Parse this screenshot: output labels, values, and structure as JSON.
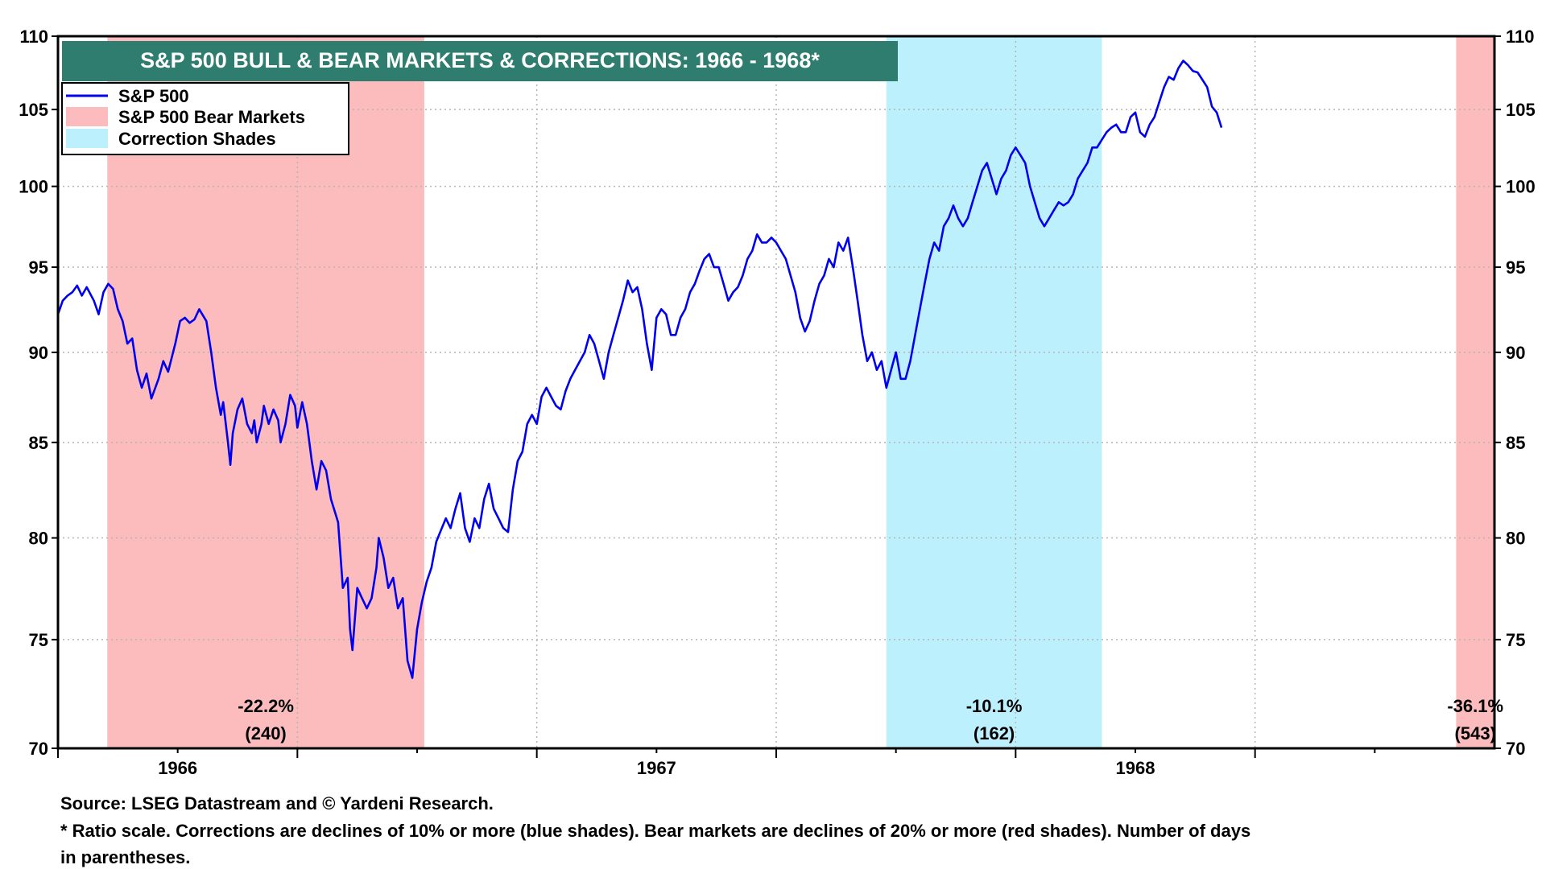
{
  "chart_data": {
    "type": "line",
    "title": "S&P 500 BULL & BEAR MARKETS & CORRECTIONS: 1966 - 1968*",
    "scale": "log",
    "ylim": [
      70,
      110
    ],
    "y_ticks": [
      70,
      75,
      80,
      85,
      90,
      95,
      100,
      105,
      110
    ],
    "x_range": [
      1965.5,
      1968.5
    ],
    "x_major_ticks": [
      1965.5,
      1966.0,
      1966.5,
      1967.0,
      1967.5,
      1968.0
    ],
    "x_minor_ticks": [
      1965.75,
      1966.25,
      1966.75,
      1967.25,
      1967.75,
      1968.25
    ],
    "x_labels": [
      {
        "text": "1966",
        "x": 1965.75
      },
      {
        "text": "1967",
        "x": 1966.75
      },
      {
        "text": "1968",
        "x": 1967.75
      }
    ],
    "grid": true,
    "legend_position": "top-left",
    "legend": [
      {
        "label": "S&P 500",
        "kind": "line",
        "color": "#0000ee"
      },
      {
        "label": "S&P 500 Bear Markets",
        "kind": "box",
        "color": "#fcbcbd"
      },
      {
        "label": "Correction Shades",
        "kind": "box",
        "color": "#bdf0fd"
      }
    ],
    "shades": [
      {
        "kind": "bear",
        "start": 1965.603,
        "end": 1966.265,
        "color": "#fcbcbd",
        "pct_label": "-22.2%",
        "days_label": "(240)"
      },
      {
        "kind": "correction",
        "start": 1967.23,
        "end": 1967.68,
        "color": "#bdf0fd",
        "pct_label": "-10.1%",
        "days_label": "(162)"
      },
      {
        "kind": "bear",
        "start": 1968.42,
        "end": 1968.5,
        "color": "#fcbcbd",
        "pct_label": "-36.1%",
        "days_label": "(543)"
      }
    ],
    "series": [
      {
        "name": "S&P 500",
        "color": "#0000ee",
        "points": [
          [
            1965.5,
            92.2
          ],
          [
            1965.51,
            93.0
          ],
          [
            1965.52,
            93.3
          ],
          [
            1965.53,
            93.5
          ],
          [
            1965.54,
            93.9
          ],
          [
            1965.55,
            93.3
          ],
          [
            1965.56,
            93.8
          ],
          [
            1965.575,
            93.0
          ],
          [
            1965.585,
            92.2
          ],
          [
            1965.595,
            93.5
          ],
          [
            1965.605,
            94.0
          ],
          [
            1965.615,
            93.7
          ],
          [
            1965.625,
            92.5
          ],
          [
            1965.635,
            91.8
          ],
          [
            1965.645,
            90.5
          ],
          [
            1965.655,
            90.8
          ],
          [
            1965.665,
            89.0
          ],
          [
            1965.675,
            88.0
          ],
          [
            1965.685,
            88.8
          ],
          [
            1965.695,
            87.4
          ],
          [
            1965.71,
            88.5
          ],
          [
            1965.72,
            89.5
          ],
          [
            1965.73,
            88.9
          ],
          [
            1965.745,
            90.5
          ],
          [
            1965.755,
            91.8
          ],
          [
            1965.765,
            92.0
          ],
          [
            1965.775,
            91.7
          ],
          [
            1965.785,
            91.9
          ],
          [
            1965.795,
            92.5
          ],
          [
            1965.81,
            91.8
          ],
          [
            1965.82,
            90.0
          ],
          [
            1965.83,
            88.0
          ],
          [
            1965.84,
            86.5
          ],
          [
            1965.845,
            87.2
          ],
          [
            1965.855,
            85.0
          ],
          [
            1965.86,
            83.8
          ],
          [
            1965.865,
            85.5
          ],
          [
            1965.875,
            86.8
          ],
          [
            1965.885,
            87.4
          ],
          [
            1965.895,
            86.0
          ],
          [
            1965.905,
            85.5
          ],
          [
            1965.91,
            86.2
          ],
          [
            1965.915,
            85.0
          ],
          [
            1965.925,
            86.0
          ],
          [
            1965.93,
            87.0
          ],
          [
            1965.94,
            86.0
          ],
          [
            1965.95,
            86.8
          ],
          [
            1965.96,
            86.2
          ],
          [
            1965.965,
            85.0
          ],
          [
            1965.975,
            86.0
          ],
          [
            1965.985,
            87.6
          ],
          [
            1965.995,
            87.0
          ],
          [
            1966.0,
            85.8
          ],
          [
            1966.01,
            87.2
          ],
          [
            1966.02,
            86.0
          ],
          [
            1966.03,
            84.0
          ],
          [
            1966.04,
            82.5
          ],
          [
            1966.05,
            84.0
          ],
          [
            1966.06,
            83.5
          ],
          [
            1966.07,
            82.0
          ],
          [
            1966.085,
            80.8
          ],
          [
            1966.095,
            77.5
          ],
          [
            1966.105,
            78.0
          ],
          [
            1966.11,
            75.5
          ],
          [
            1966.115,
            74.5
          ],
          [
            1966.125,
            77.5
          ],
          [
            1966.135,
            77.0
          ],
          [
            1966.145,
            76.5
          ],
          [
            1966.155,
            77.0
          ],
          [
            1966.165,
            78.5
          ],
          [
            1966.17,
            80.0
          ],
          [
            1966.18,
            79.0
          ],
          [
            1966.19,
            77.5
          ],
          [
            1966.2,
            78.0
          ],
          [
            1966.21,
            76.5
          ],
          [
            1966.22,
            77.0
          ],
          [
            1966.23,
            74.0
          ],
          [
            1966.24,
            73.2
          ],
          [
            1966.25,
            75.5
          ],
          [
            1966.26,
            76.8
          ],
          [
            1966.27,
            77.8
          ],
          [
            1966.28,
            78.5
          ],
          [
            1966.29,
            79.8
          ],
          [
            1966.3,
            80.4
          ],
          [
            1966.31,
            81.0
          ],
          [
            1966.32,
            80.5
          ],
          [
            1966.33,
            81.5
          ],
          [
            1966.34,
            82.3
          ],
          [
            1966.35,
            80.5
          ],
          [
            1966.36,
            79.8
          ],
          [
            1966.37,
            81.0
          ],
          [
            1966.38,
            80.5
          ],
          [
            1966.39,
            82.0
          ],
          [
            1966.4,
            82.8
          ],
          [
            1966.41,
            81.5
          ],
          [
            1966.42,
            81.0
          ],
          [
            1966.43,
            80.5
          ],
          [
            1966.44,
            80.3
          ],
          [
            1966.45,
            82.5
          ],
          [
            1966.46,
            84.0
          ],
          [
            1966.47,
            84.5
          ],
          [
            1966.48,
            86.0
          ],
          [
            1966.49,
            86.5
          ],
          [
            1966.5,
            86.0
          ],
          [
            1966.51,
            87.5
          ],
          [
            1966.52,
            88.0
          ],
          [
            1966.53,
            87.5
          ],
          [
            1966.54,
            87.0
          ],
          [
            1966.55,
            86.8
          ],
          [
            1966.56,
            87.8
          ],
          [
            1966.57,
            88.5
          ],
          [
            1966.58,
            89.0
          ],
          [
            1966.59,
            89.5
          ],
          [
            1966.6,
            90.0
          ],
          [
            1966.61,
            91.0
          ],
          [
            1966.62,
            90.5
          ],
          [
            1966.63,
            89.5
          ],
          [
            1966.64,
            88.5
          ],
          [
            1966.65,
            90.0
          ],
          [
            1966.66,
            91.0
          ],
          [
            1966.67,
            92.0
          ],
          [
            1966.68,
            93.0
          ],
          [
            1966.69,
            94.2
          ],
          [
            1966.7,
            93.5
          ],
          [
            1966.71,
            93.8
          ],
          [
            1966.72,
            92.5
          ],
          [
            1966.73,
            90.5
          ],
          [
            1966.74,
            89.0
          ],
          [
            1966.75,
            92.0
          ],
          [
            1966.76,
            92.5
          ],
          [
            1966.77,
            92.2
          ],
          [
            1966.78,
            91.0
          ],
          [
            1966.79,
            91.0
          ],
          [
            1966.8,
            92.0
          ],
          [
            1966.81,
            92.5
          ],
          [
            1966.82,
            93.5
          ],
          [
            1966.83,
            94.0
          ],
          [
            1966.84,
            94.8
          ],
          [
            1966.85,
            95.5
          ],
          [
            1966.86,
            95.8
          ],
          [
            1966.87,
            95.0
          ],
          [
            1966.88,
            95.0
          ],
          [
            1966.89,
            94.0
          ],
          [
            1966.9,
            93.0
          ],
          [
            1966.91,
            93.5
          ],
          [
            1966.92,
            93.8
          ],
          [
            1966.93,
            94.5
          ],
          [
            1966.94,
            95.5
          ],
          [
            1966.95,
            96.0
          ],
          [
            1966.96,
            97.0
          ],
          [
            1966.97,
            96.5
          ],
          [
            1966.98,
            96.5
          ],
          [
            1966.99,
            96.8
          ],
          [
            1967.0,
            96.5
          ],
          [
            1967.01,
            96.0
          ],
          [
            1967.02,
            95.5
          ],
          [
            1967.03,
            94.5
          ],
          [
            1967.04,
            93.5
          ],
          [
            1967.05,
            92.0
          ],
          [
            1967.06,
            91.2
          ],
          [
            1967.07,
            91.8
          ],
          [
            1967.08,
            93.0
          ],
          [
            1967.09,
            94.0
          ],
          [
            1967.1,
            94.5
          ],
          [
            1967.11,
            95.5
          ],
          [
            1967.12,
            95.0
          ],
          [
            1967.13,
            96.5
          ],
          [
            1967.14,
            96.0
          ],
          [
            1967.15,
            96.8
          ],
          [
            1967.16,
            95.0
          ],
          [
            1967.17,
            93.0
          ],
          [
            1967.18,
            91.0
          ],
          [
            1967.19,
            89.5
          ],
          [
            1967.2,
            90.0
          ],
          [
            1967.21,
            89.0
          ],
          [
            1967.22,
            89.5
          ],
          [
            1967.23,
            88.0
          ],
          [
            1967.24,
            89.0
          ],
          [
            1967.25,
            90.0
          ],
          [
            1967.26,
            88.5
          ],
          [
            1967.27,
            88.5
          ],
          [
            1967.28,
            89.5
          ],
          [
            1967.29,
            91.0
          ],
          [
            1967.3,
            92.5
          ],
          [
            1967.31,
            94.0
          ],
          [
            1967.32,
            95.5
          ],
          [
            1967.33,
            96.5
          ],
          [
            1967.34,
            96.0
          ],
          [
            1967.35,
            97.5
          ],
          [
            1967.36,
            98.0
          ],
          [
            1967.37,
            98.8
          ],
          [
            1967.38,
            98.0
          ],
          [
            1967.39,
            97.5
          ],
          [
            1967.4,
            98.0
          ],
          [
            1967.41,
            99.0
          ],
          [
            1967.42,
            100.0
          ],
          [
            1967.43,
            101.0
          ],
          [
            1967.44,
            101.5
          ],
          [
            1967.45,
            100.5
          ],
          [
            1967.46,
            99.5
          ],
          [
            1967.47,
            100.5
          ],
          [
            1967.48,
            101.0
          ],
          [
            1967.49,
            102.0
          ],
          [
            1967.5,
            102.5
          ],
          [
            1967.51,
            102.0
          ],
          [
            1967.52,
            101.5
          ],
          [
            1967.53,
            100.0
          ],
          [
            1967.54,
            99.0
          ],
          [
            1967.55,
            98.0
          ],
          [
            1967.56,
            97.5
          ],
          [
            1967.57,
            98.0
          ],
          [
            1967.58,
            98.5
          ],
          [
            1967.59,
            99.0
          ],
          [
            1967.6,
            98.8
          ],
          [
            1967.61,
            99.0
          ],
          [
            1967.62,
            99.5
          ],
          [
            1967.63,
            100.5
          ],
          [
            1967.64,
            101.0
          ],
          [
            1967.65,
            101.5
          ],
          [
            1967.66,
            102.5
          ],
          [
            1967.67,
            102.5
          ],
          [
            1967.68,
            103.0
          ],
          [
            1967.69,
            103.5
          ],
          [
            1967.7,
            103.8
          ],
          [
            1967.71,
            104.0
          ],
          [
            1967.72,
            103.5
          ],
          [
            1967.73,
            103.5
          ],
          [
            1967.74,
            104.5
          ],
          [
            1967.75,
            104.8
          ],
          [
            1967.76,
            103.5
          ],
          [
            1967.77,
            103.2
          ],
          [
            1967.78,
            104.0
          ],
          [
            1967.79,
            104.5
          ],
          [
            1967.8,
            105.5
          ],
          [
            1967.81,
            106.5
          ],
          [
            1967.82,
            107.2
          ],
          [
            1967.83,
            107.0
          ],
          [
            1967.84,
            107.8
          ],
          [
            1967.85,
            108.3
          ],
          [
            1967.86,
            108.0
          ],
          [
            1967.87,
            107.6
          ],
          [
            1967.88,
            107.5
          ],
          [
            1967.89,
            107.0
          ],
          [
            1967.9,
            106.5
          ],
          [
            1967.91,
            105.2
          ],
          [
            1967.92,
            104.8
          ],
          [
            1967.93,
            103.8
          ]
        ]
      }
    ]
  },
  "notes": {
    "source": "Source: LSEG Datastream and © Yardeni Research.",
    "footnote_line1": "* Ratio scale. Corrections are declines of 10% or more (blue shades). Bear markets are declines of 20% or more (red shades). Number of days",
    "footnote_line2": "in parentheses."
  }
}
